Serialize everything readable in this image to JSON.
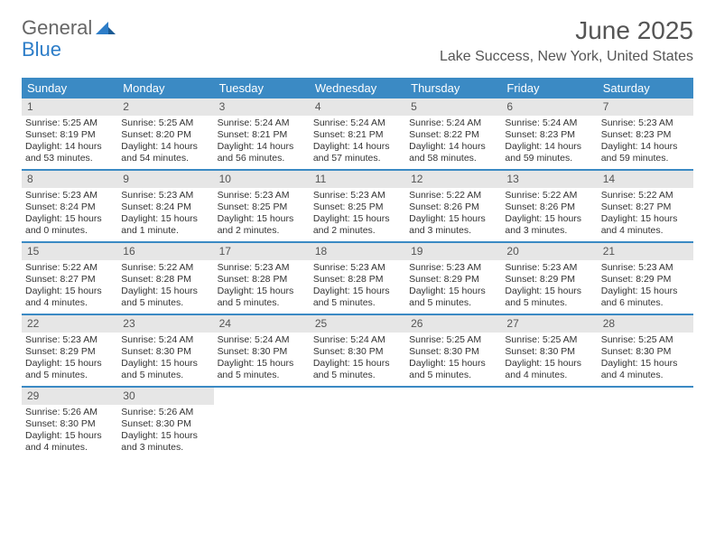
{
  "logo": {
    "text1": "General",
    "text2": "Blue"
  },
  "title": "June 2025",
  "location": "Lake Success, New York, United States",
  "colors": {
    "header_bg": "#3b8ac4",
    "header_text": "#ffffff",
    "daynum_bg": "#e6e6e6",
    "text": "#333333",
    "logo_gray": "#666666",
    "logo_blue": "#2d7dc8"
  },
  "day_headers": [
    "Sunday",
    "Monday",
    "Tuesday",
    "Wednesday",
    "Thursday",
    "Friday",
    "Saturday"
  ],
  "weeks": [
    [
      {
        "n": "1",
        "sunrise": "Sunrise: 5:25 AM",
        "sunset": "Sunset: 8:19 PM",
        "daylight": "Daylight: 14 hours and 53 minutes."
      },
      {
        "n": "2",
        "sunrise": "Sunrise: 5:25 AM",
        "sunset": "Sunset: 8:20 PM",
        "daylight": "Daylight: 14 hours and 54 minutes."
      },
      {
        "n": "3",
        "sunrise": "Sunrise: 5:24 AM",
        "sunset": "Sunset: 8:21 PM",
        "daylight": "Daylight: 14 hours and 56 minutes."
      },
      {
        "n": "4",
        "sunrise": "Sunrise: 5:24 AM",
        "sunset": "Sunset: 8:21 PM",
        "daylight": "Daylight: 14 hours and 57 minutes."
      },
      {
        "n": "5",
        "sunrise": "Sunrise: 5:24 AM",
        "sunset": "Sunset: 8:22 PM",
        "daylight": "Daylight: 14 hours and 58 minutes."
      },
      {
        "n": "6",
        "sunrise": "Sunrise: 5:24 AM",
        "sunset": "Sunset: 8:23 PM",
        "daylight": "Daylight: 14 hours and 59 minutes."
      },
      {
        "n": "7",
        "sunrise": "Sunrise: 5:23 AM",
        "sunset": "Sunset: 8:23 PM",
        "daylight": "Daylight: 14 hours and 59 minutes."
      }
    ],
    [
      {
        "n": "8",
        "sunrise": "Sunrise: 5:23 AM",
        "sunset": "Sunset: 8:24 PM",
        "daylight": "Daylight: 15 hours and 0 minutes."
      },
      {
        "n": "9",
        "sunrise": "Sunrise: 5:23 AM",
        "sunset": "Sunset: 8:24 PM",
        "daylight": "Daylight: 15 hours and 1 minute."
      },
      {
        "n": "10",
        "sunrise": "Sunrise: 5:23 AM",
        "sunset": "Sunset: 8:25 PM",
        "daylight": "Daylight: 15 hours and 2 minutes."
      },
      {
        "n": "11",
        "sunrise": "Sunrise: 5:23 AM",
        "sunset": "Sunset: 8:25 PM",
        "daylight": "Daylight: 15 hours and 2 minutes."
      },
      {
        "n": "12",
        "sunrise": "Sunrise: 5:22 AM",
        "sunset": "Sunset: 8:26 PM",
        "daylight": "Daylight: 15 hours and 3 minutes."
      },
      {
        "n": "13",
        "sunrise": "Sunrise: 5:22 AM",
        "sunset": "Sunset: 8:26 PM",
        "daylight": "Daylight: 15 hours and 3 minutes."
      },
      {
        "n": "14",
        "sunrise": "Sunrise: 5:22 AM",
        "sunset": "Sunset: 8:27 PM",
        "daylight": "Daylight: 15 hours and 4 minutes."
      }
    ],
    [
      {
        "n": "15",
        "sunrise": "Sunrise: 5:22 AM",
        "sunset": "Sunset: 8:27 PM",
        "daylight": "Daylight: 15 hours and 4 minutes."
      },
      {
        "n": "16",
        "sunrise": "Sunrise: 5:22 AM",
        "sunset": "Sunset: 8:28 PM",
        "daylight": "Daylight: 15 hours and 5 minutes."
      },
      {
        "n": "17",
        "sunrise": "Sunrise: 5:23 AM",
        "sunset": "Sunset: 8:28 PM",
        "daylight": "Daylight: 15 hours and 5 minutes."
      },
      {
        "n": "18",
        "sunrise": "Sunrise: 5:23 AM",
        "sunset": "Sunset: 8:28 PM",
        "daylight": "Daylight: 15 hours and 5 minutes."
      },
      {
        "n": "19",
        "sunrise": "Sunrise: 5:23 AM",
        "sunset": "Sunset: 8:29 PM",
        "daylight": "Daylight: 15 hours and 5 minutes."
      },
      {
        "n": "20",
        "sunrise": "Sunrise: 5:23 AM",
        "sunset": "Sunset: 8:29 PM",
        "daylight": "Daylight: 15 hours and 5 minutes."
      },
      {
        "n": "21",
        "sunrise": "Sunrise: 5:23 AM",
        "sunset": "Sunset: 8:29 PM",
        "daylight": "Daylight: 15 hours and 6 minutes."
      }
    ],
    [
      {
        "n": "22",
        "sunrise": "Sunrise: 5:23 AM",
        "sunset": "Sunset: 8:29 PM",
        "daylight": "Daylight: 15 hours and 5 minutes."
      },
      {
        "n": "23",
        "sunrise": "Sunrise: 5:24 AM",
        "sunset": "Sunset: 8:30 PM",
        "daylight": "Daylight: 15 hours and 5 minutes."
      },
      {
        "n": "24",
        "sunrise": "Sunrise: 5:24 AM",
        "sunset": "Sunset: 8:30 PM",
        "daylight": "Daylight: 15 hours and 5 minutes."
      },
      {
        "n": "25",
        "sunrise": "Sunrise: 5:24 AM",
        "sunset": "Sunset: 8:30 PM",
        "daylight": "Daylight: 15 hours and 5 minutes."
      },
      {
        "n": "26",
        "sunrise": "Sunrise: 5:25 AM",
        "sunset": "Sunset: 8:30 PM",
        "daylight": "Daylight: 15 hours and 5 minutes."
      },
      {
        "n": "27",
        "sunrise": "Sunrise: 5:25 AM",
        "sunset": "Sunset: 8:30 PM",
        "daylight": "Daylight: 15 hours and 4 minutes."
      },
      {
        "n": "28",
        "sunrise": "Sunrise: 5:25 AM",
        "sunset": "Sunset: 8:30 PM",
        "daylight": "Daylight: 15 hours and 4 minutes."
      }
    ],
    [
      {
        "n": "29",
        "sunrise": "Sunrise: 5:26 AM",
        "sunset": "Sunset: 8:30 PM",
        "daylight": "Daylight: 15 hours and 4 minutes."
      },
      {
        "n": "30",
        "sunrise": "Sunrise: 5:26 AM",
        "sunset": "Sunset: 8:30 PM",
        "daylight": "Daylight: 15 hours and 3 minutes."
      },
      {
        "empty": true
      },
      {
        "empty": true
      },
      {
        "empty": true
      },
      {
        "empty": true
      },
      {
        "empty": true
      }
    ]
  ]
}
